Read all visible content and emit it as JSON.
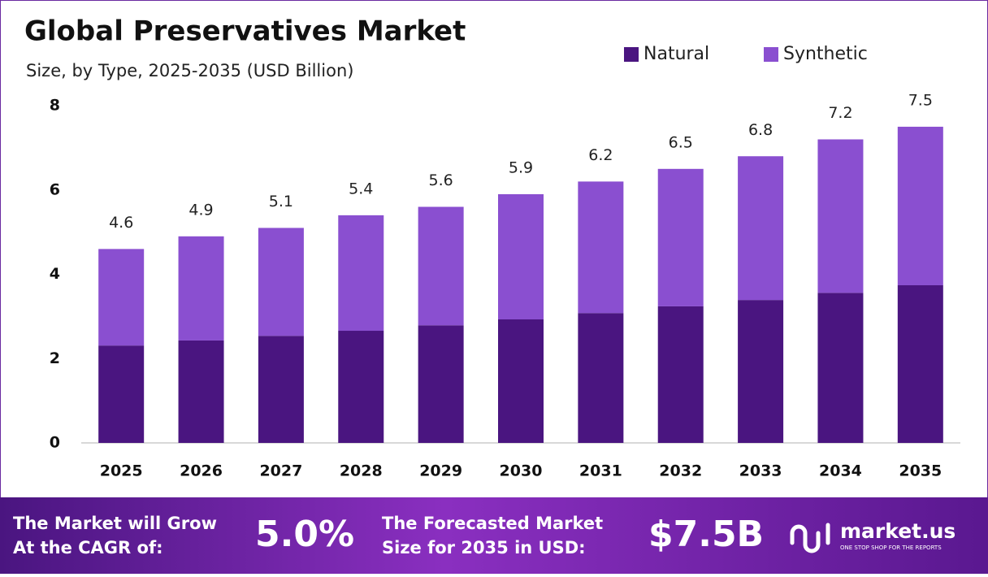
{
  "chart_data": {
    "type": "stacked-bar",
    "title": "Global Preservatives Market",
    "subtitle": "Size, by Type, 2025-2035 (USD Billion)",
    "categories": [
      "2025",
      "2026",
      "2027",
      "2028",
      "2029",
      "2030",
      "2031",
      "2032",
      "2033",
      "2034",
      "2035"
    ],
    "series": [
      {
        "name": "Natural",
        "color": "#4a1580",
        "values": [
          2.31,
          2.43,
          2.54,
          2.66,
          2.79,
          2.93,
          3.08,
          3.24,
          3.39,
          3.56,
          3.74
        ]
      },
      {
        "name": "Synthetic",
        "color": "#8a4fd0",
        "values": [
          2.29,
          2.47,
          2.56,
          2.74,
          2.81,
          2.97,
          3.12,
          3.26,
          3.41,
          3.64,
          3.76
        ]
      }
    ],
    "totals": [
      4.6,
      4.9,
      5.1,
      5.4,
      5.6,
      5.9,
      6.2,
      6.5,
      6.8,
      7.2,
      7.5
    ],
    "ylim": [
      0,
      8
    ],
    "yticks": [
      0,
      2,
      4,
      6,
      8
    ],
    "grid": false,
    "legend": "top-right"
  },
  "footer": {
    "cagr_text": [
      "The Market will Grow",
      "At the CAGR of:"
    ],
    "cagr": "5.0%",
    "forecast_text": [
      "The Forecasted Market",
      "Size for 2035 in USD:"
    ],
    "forecast": "$7.5B",
    "brand": "market.us",
    "tagline": "ONE STOP SHOP FOR THE REPORTS"
  }
}
